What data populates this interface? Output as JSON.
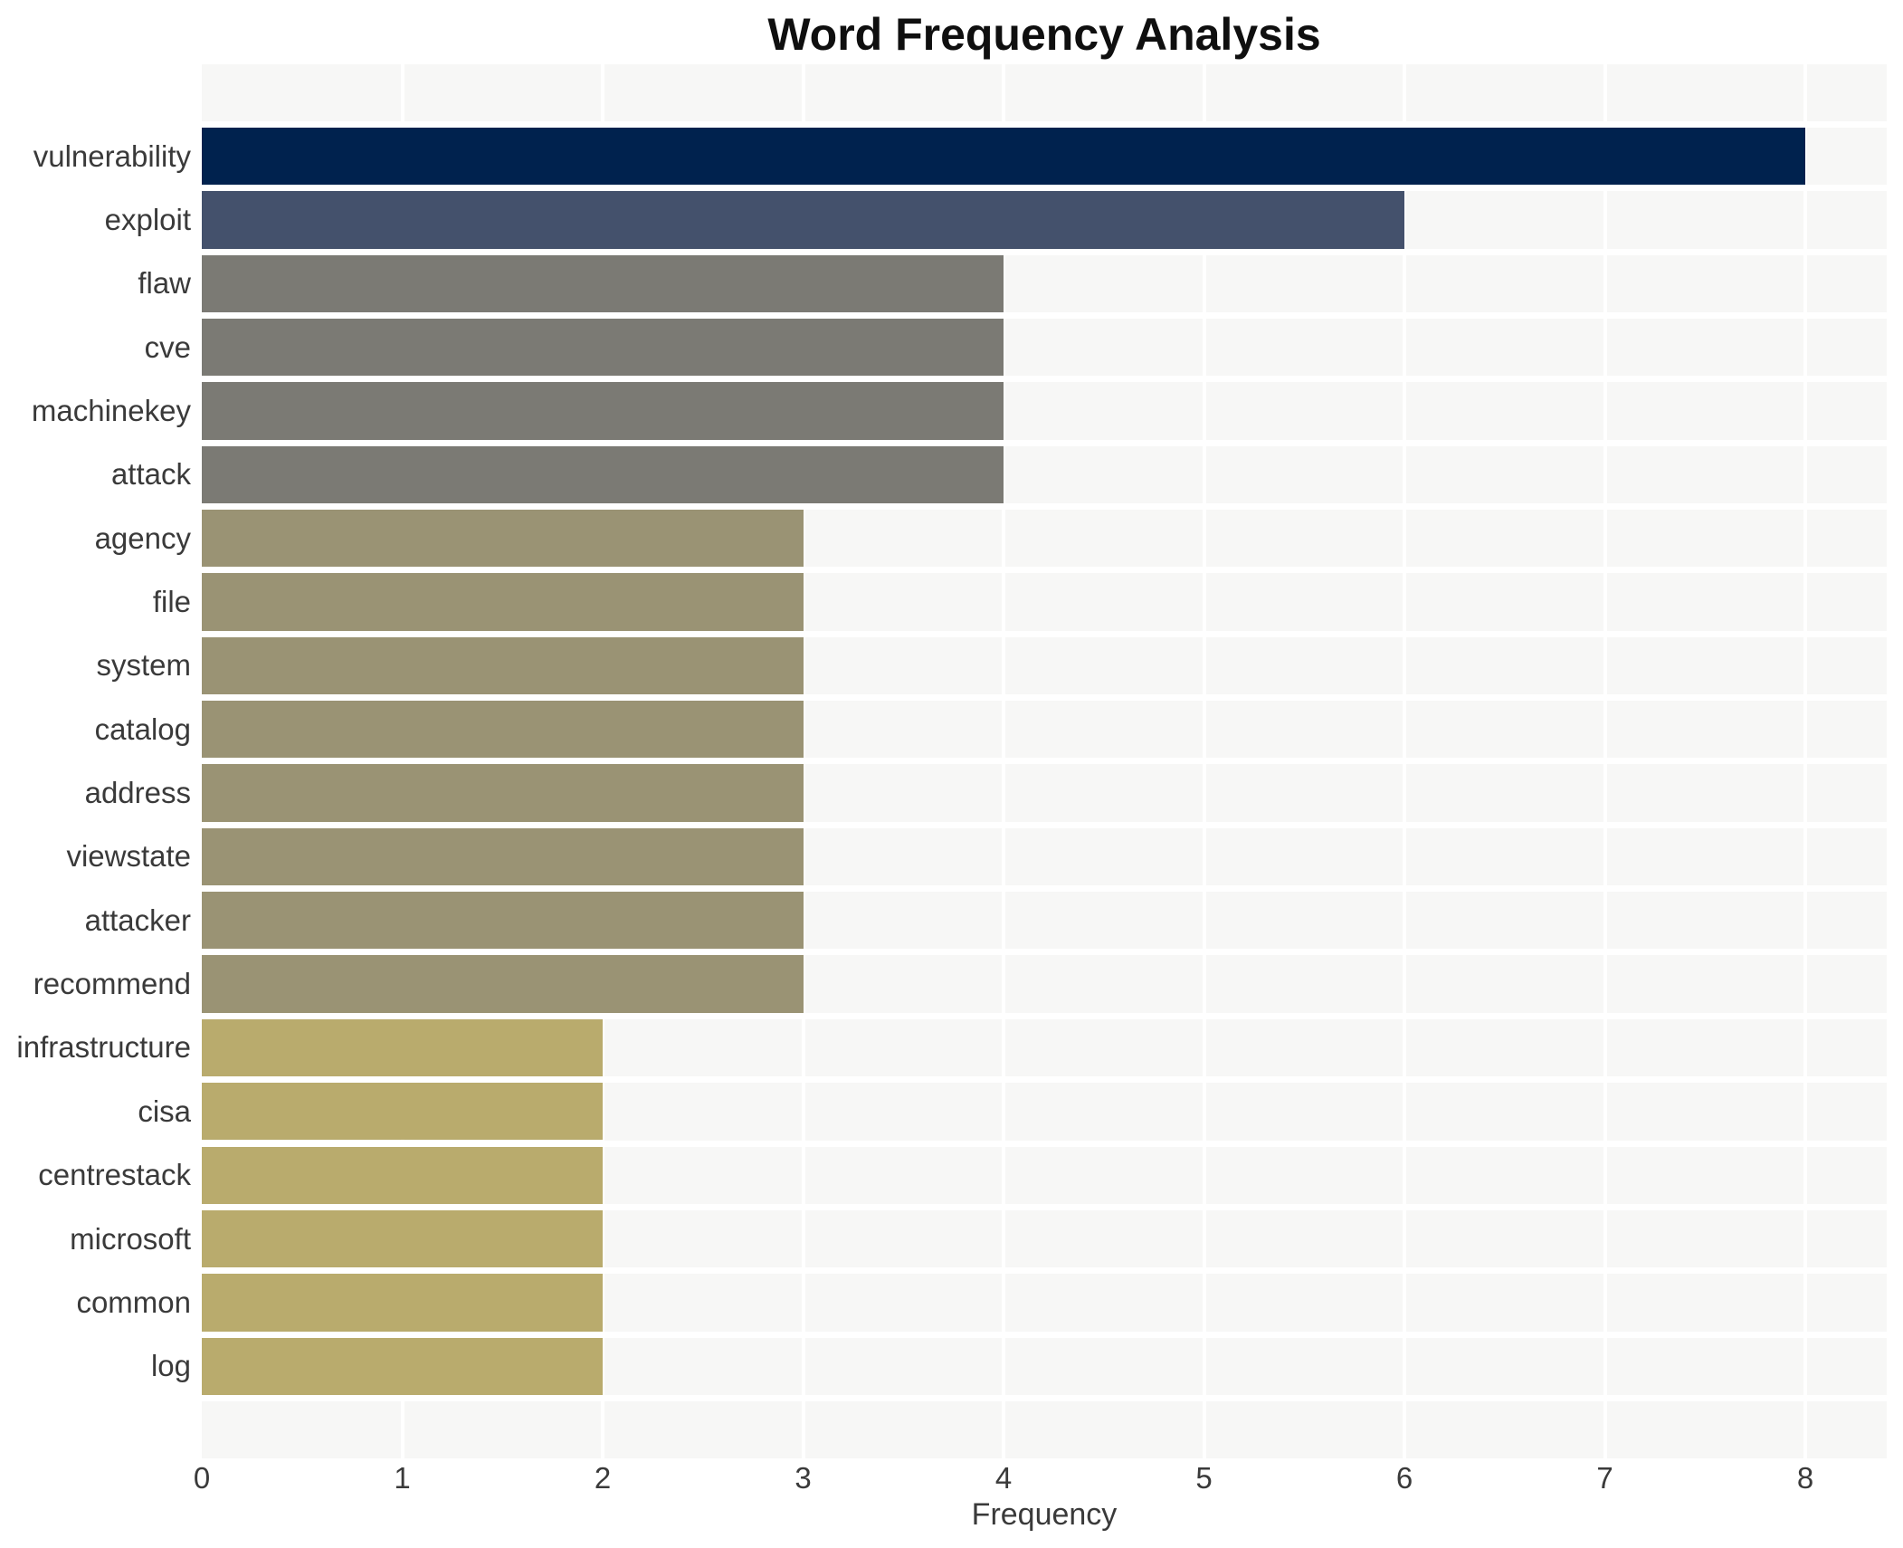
{
  "figure": {
    "background": "#ffffff"
  },
  "chart_data": {
    "type": "bar",
    "orientation": "horizontal",
    "title": "Word Frequency Analysis",
    "xlabel": "Frequency",
    "ylabel": "",
    "xlim": [
      0,
      8.4
    ],
    "x_ticks": [
      0,
      1,
      2,
      3,
      4,
      5,
      6,
      7,
      8
    ],
    "grid": true,
    "legend": false,
    "plot_background": "#f7f7f6",
    "gridline_color": "#ffffff",
    "categories": [
      "vulnerability",
      "exploit",
      "flaw",
      "cve",
      "machinekey",
      "attack",
      "agency",
      "file",
      "system",
      "catalog",
      "address",
      "viewstate",
      "attacker",
      "recommend",
      "infrastructure",
      "cisa",
      "centrestack",
      "microsoft",
      "common",
      "log"
    ],
    "values": [
      8,
      6,
      4,
      4,
      4,
      4,
      3,
      3,
      3,
      3,
      3,
      3,
      3,
      3,
      2,
      2,
      2,
      2,
      2,
      2
    ],
    "color_by_value": {
      "8": "#00224e",
      "6": "#44516c",
      "4": "#7b7a74",
      "3": "#9a9374",
      "2": "#b9ab6d"
    }
  },
  "text_colors": {
    "title": "#0f0f0f",
    "axis": "#3a3a3a"
  }
}
